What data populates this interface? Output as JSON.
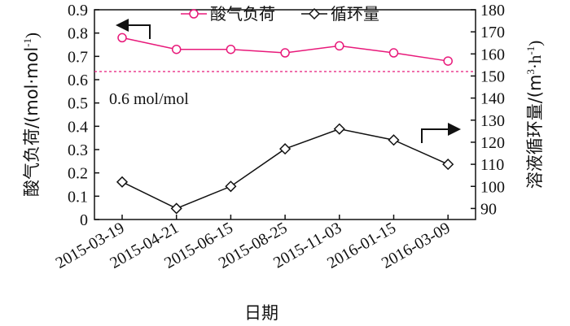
{
  "chart_data": {
    "type": "line",
    "xlabel": "日期",
    "categories": [
      "2015-03-19",
      "2015-04-21",
      "2015-06-15",
      "2015-08-25",
      "2015-11-03",
      "2016-01-15",
      "2016-03-09"
    ],
    "y_left": {
      "label": "酸气负荷/(mol·mol",
      "label_sup": "-1",
      "label_close": ")",
      "ylim": [
        0,
        0.9
      ],
      "ticks": [
        "0",
        "0.1",
        "0.2",
        "0.3",
        "0.4",
        "0.5",
        "0.6",
        "0.7",
        "0.8",
        "0.9"
      ]
    },
    "y_right": {
      "label": "溶液循环量/(m",
      "label_sup1": "3",
      "label_mid": "·h",
      "label_sup2": "-1",
      "label_close": ")",
      "ylim": [
        85,
        180
      ],
      "ticks": [
        "90",
        "100",
        "110",
        "120",
        "130",
        "140",
        "150",
        "160",
        "170",
        "180"
      ]
    },
    "series": [
      {
        "name": "酸气负荷",
        "axis": "left",
        "marker": "circle",
        "color": "#e8197a",
        "values": [
          0.78,
          0.73,
          0.73,
          0.715,
          0.745,
          0.715,
          0.68
        ]
      },
      {
        "name": "循环量",
        "axis": "right",
        "marker": "diamond",
        "color": "#111111",
        "values": [
          102,
          90,
          100,
          117,
          126,
          121,
          110
        ]
      }
    ],
    "reference_line": {
      "axis": "left",
      "value": 0.635,
      "label": "0.6 mol/mol",
      "color": "#e8197a",
      "style": "dashed"
    },
    "legend": {
      "position": "top-center"
    },
    "grid": false
  }
}
